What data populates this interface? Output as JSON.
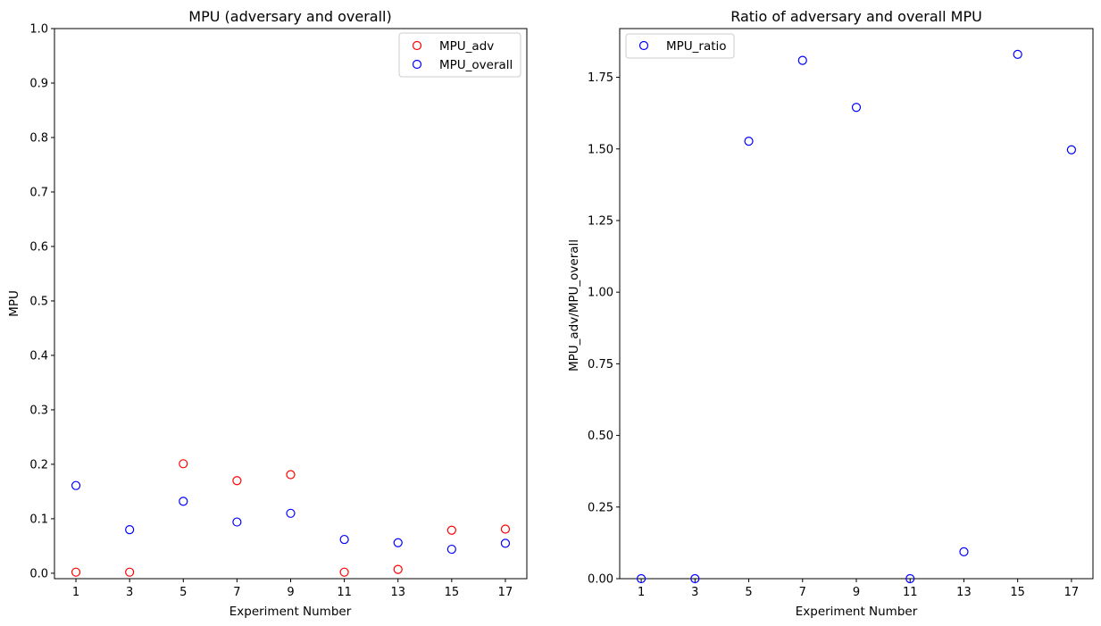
{
  "chart_data": [
    {
      "type": "scatter",
      "title": "MPU (adversary and overall)",
      "xlabel": "Experiment Number",
      "ylabel": "MPU",
      "xlim": [
        0.2,
        17.8
      ],
      "ylim": [
        -0.01,
        1.0
      ],
      "xticks": [
        1,
        3,
        5,
        7,
        9,
        11,
        13,
        15,
        17
      ],
      "xtick_labels": [
        "1",
        "3",
        "5",
        "7",
        "9",
        "11",
        "13",
        "15",
        "17"
      ],
      "yticks": [
        0.0,
        0.1,
        0.2,
        0.3,
        0.4,
        0.5,
        0.6,
        0.7,
        0.8,
        0.9,
        1.0
      ],
      "ytick_labels": [
        "0.0",
        "0.1",
        "0.2",
        "0.3",
        "0.4",
        "0.5",
        "0.6",
        "0.7",
        "0.8",
        "0.9",
        "1.0"
      ],
      "legend_position": "top-right",
      "grid": false,
      "series": [
        {
          "name": "MPU_adv",
          "color": "#ff0000",
          "marker": "open-circle",
          "x": [
            1,
            3,
            5,
            7,
            9,
            11,
            13,
            15,
            17
          ],
          "y": [
            0.002,
            0.002,
            0.201,
            0.17,
            0.181,
            0.002,
            0.007,
            0.079,
            0.081
          ]
        },
        {
          "name": "MPU_overall",
          "color": "#0000ff",
          "marker": "open-circle",
          "x": [
            1,
            3,
            5,
            7,
            9,
            11,
            13,
            15,
            17
          ],
          "y": [
            0.161,
            0.08,
            0.132,
            0.094,
            0.11,
            0.062,
            0.056,
            0.044,
            0.055
          ]
        }
      ]
    },
    {
      "type": "scatter",
      "title": "Ratio of adversary and overall MPU",
      "xlabel": "Experiment Number",
      "ylabel": "MPU_adv/MPU_overall",
      "xlim": [
        0.2,
        17.8
      ],
      "ylim": [
        0.0,
        1.92
      ],
      "xticks": [
        1,
        3,
        5,
        7,
        9,
        11,
        13,
        15,
        17
      ],
      "xtick_labels": [
        "1",
        "3",
        "5",
        "7",
        "9",
        "11",
        "13",
        "15",
        "17"
      ],
      "yticks": [
        0.0,
        0.25,
        0.5,
        0.75,
        1.0,
        1.25,
        1.5,
        1.75
      ],
      "ytick_labels": [
        "0.00",
        "0.25",
        "0.50",
        "0.75",
        "1.00",
        "1.25",
        "1.50",
        "1.75"
      ],
      "legend_position": "top-left",
      "grid": false,
      "series": [
        {
          "name": "MPU_ratio",
          "color": "#0000ff",
          "marker": "open-circle",
          "x": [
            1,
            3,
            5,
            7,
            9,
            11,
            13,
            15,
            17
          ],
          "y": [
            0.0,
            0.0,
            1.527,
            1.809,
            1.645,
            0.0,
            0.094,
            1.83,
            1.497
          ]
        }
      ]
    }
  ]
}
